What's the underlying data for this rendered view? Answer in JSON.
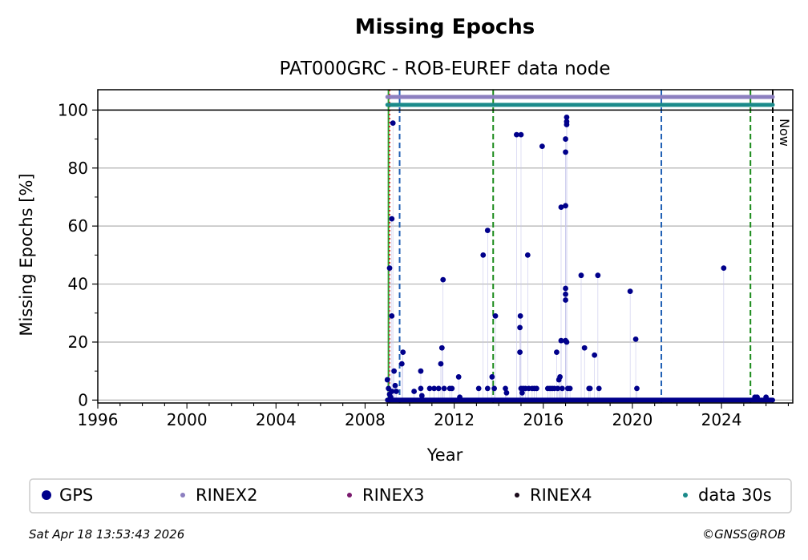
{
  "chart_data": {
    "type": "scatter",
    "title": "Missing Epochs",
    "subtitle": "PAT000GRC - ROB-EUREF data node",
    "xlabel": "Year",
    "ylabel": "Missing Epochs [%]",
    "xlim": [
      1996,
      2027.2
    ],
    "ylim": [
      -1,
      107
    ],
    "xticks": [
      1996,
      2000,
      2004,
      2008,
      2012,
      2016,
      2020,
      2024
    ],
    "yticks": [
      0,
      20,
      40,
      60,
      80,
      100
    ],
    "grid": true,
    "legend_placement": "bottom",
    "now_label": "Now",
    "now_year": 2026.3,
    "vertical_lines": [
      {
        "x": 2009.05,
        "color": "#2ca02c",
        "style": "solid"
      },
      {
        "x": 2009.1,
        "color": "#d62728",
        "style": "dotted"
      },
      {
        "x": 2009.55,
        "color": "#1f5fb4",
        "style": "dashed"
      },
      {
        "x": 2013.75,
        "color": "#1a8a1a",
        "style": "dashed"
      },
      {
        "x": 2021.3,
        "color": "#1f5fb4",
        "style": "dashed"
      },
      {
        "x": 2025.3,
        "color": "#1a8a1a",
        "style": "dashed"
      },
      {
        "x": 2026.3,
        "color": "#000000",
        "style": "dashed"
      }
    ],
    "availability_bars": [
      {
        "name": "RINEX2",
        "start": 2009.0,
        "end": 2026.3,
        "y": 104.5,
        "color": "#8c7fc0"
      },
      {
        "name": "data 30s",
        "start": 2009.0,
        "end": 2026.3,
        "y": 101.8,
        "color": "#1a8a8a"
      }
    ],
    "series": [
      {
        "name": "GPS",
        "color": "#00008b",
        "baseline_zero": {
          "start": 2009.0,
          "end": 2026.3,
          "y": 0
        },
        "points": [
          [
            2009.0,
            7
          ],
          [
            2009.05,
            4
          ],
          [
            2009.1,
            2
          ],
          [
            2009.15,
            1
          ],
          [
            2009.2,
            3
          ],
          [
            2009.1,
            45.5
          ],
          [
            2009.2,
            62.5
          ],
          [
            2009.25,
            95.5
          ],
          [
            2009.2,
            29
          ],
          [
            2009.3,
            10
          ],
          [
            2009.35,
            5
          ],
          [
            2009.4,
            3
          ],
          [
            2009.7,
            16.5
          ],
          [
            2009.65,
            12.5
          ],
          [
            2010.2,
            3
          ],
          [
            2010.5,
            10
          ],
          [
            2010.5,
            4
          ],
          [
            2010.55,
            1.5
          ],
          [
            2010.9,
            4
          ],
          [
            2011.1,
            4
          ],
          [
            2011.3,
            4
          ],
          [
            2011.4,
            12.5
          ],
          [
            2011.45,
            18
          ],
          [
            2011.5,
            41.5
          ],
          [
            2011.55,
            4
          ],
          [
            2011.8,
            4
          ],
          [
            2011.9,
            4
          ],
          [
            2012.2,
            8
          ],
          [
            2012.25,
            1
          ],
          [
            2013.1,
            4
          ],
          [
            2013.3,
            50
          ],
          [
            2013.5,
            58.5
          ],
          [
            2013.5,
            4
          ],
          [
            2013.7,
            8
          ],
          [
            2013.8,
            4
          ],
          [
            2013.85,
            29
          ],
          [
            2014.3,
            4
          ],
          [
            2014.35,
            2.5
          ],
          [
            2014.8,
            91.5
          ],
          [
            2015.0,
            91.5
          ],
          [
            2014.95,
            16.5
          ],
          [
            2014.95,
            25
          ],
          [
            2014.97,
            29
          ],
          [
            2015.0,
            4
          ],
          [
            2015.05,
            2.5
          ],
          [
            2015.1,
            4
          ],
          [
            2015.2,
            4
          ],
          [
            2015.3,
            50
          ],
          [
            2015.35,
            4
          ],
          [
            2015.5,
            4
          ],
          [
            2015.6,
            4
          ],
          [
            2015.7,
            4
          ],
          [
            2015.95,
            87.5
          ],
          [
            2016.2,
            4
          ],
          [
            2016.3,
            4
          ],
          [
            2016.4,
            4
          ],
          [
            2016.5,
            4
          ],
          [
            2016.6,
            16.5
          ],
          [
            2016.65,
            4
          ],
          [
            2016.7,
            7
          ],
          [
            2016.75,
            8
          ],
          [
            2016.8,
            20.5
          ],
          [
            2016.8,
            66.5
          ],
          [
            2016.85,
            4
          ],
          [
            2017.0,
            67
          ],
          [
            2017.0,
            85.5
          ],
          [
            2017.0,
            90
          ],
          [
            2017.05,
            95
          ],
          [
            2017.05,
            96
          ],
          [
            2017.05,
            97.5
          ],
          [
            2017.0,
            38.5
          ],
          [
            2017.0,
            36.5
          ],
          [
            2017.0,
            34.5
          ],
          [
            2017.0,
            20.5
          ],
          [
            2017.05,
            20
          ],
          [
            2017.1,
            4
          ],
          [
            2017.2,
            4
          ],
          [
            2017.7,
            43
          ],
          [
            2017.85,
            18
          ],
          [
            2018.05,
            4
          ],
          [
            2018.1,
            4
          ],
          [
            2018.3,
            15.5
          ],
          [
            2018.45,
            43
          ],
          [
            2018.5,
            4
          ],
          [
            2019.9,
            37.5
          ],
          [
            2020.15,
            21
          ],
          [
            2020.2,
            4
          ],
          [
            2024.1,
            45.5
          ],
          [
            2025.5,
            1
          ],
          [
            2025.6,
            1
          ],
          [
            2026.0,
            1
          ]
        ]
      },
      {
        "name": "RINEX2",
        "color": "#8c7fc0"
      },
      {
        "name": "RINEX3",
        "color": "#7a1a6e"
      },
      {
        "name": "RINEX4",
        "color": "#1a0a1a"
      },
      {
        "name": "data 30s",
        "color": "#1a8a8a"
      }
    ]
  },
  "footer": {
    "timestamp": "Sat Apr 18 13:53:43 2026",
    "copyright": "©GNSS@ROB"
  }
}
